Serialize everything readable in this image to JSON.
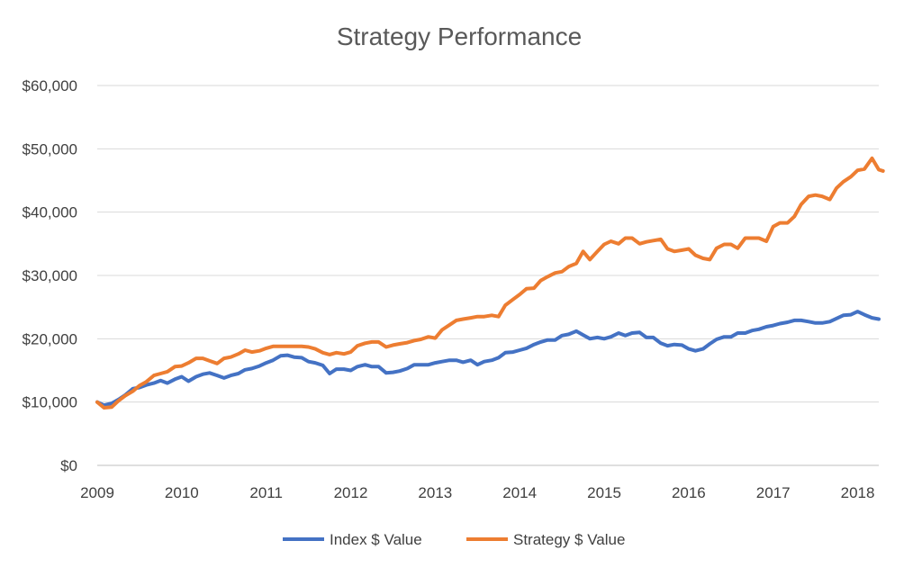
{
  "chart_data": {
    "type": "line",
    "title": "Strategy Performance",
    "xlabel": "",
    "ylabel": "",
    "xlim": [
      2009.0,
      2018.25
    ],
    "ylim": [
      0,
      60000
    ],
    "x_ticks": [
      2009,
      2010,
      2011,
      2012,
      2013,
      2014,
      2015,
      2016,
      2017,
      2018
    ],
    "x_tick_labels": [
      "2009",
      "2010",
      "2011",
      "2012",
      "2013",
      "2014",
      "2015",
      "2016",
      "2017",
      "2018"
    ],
    "y_ticks": [
      0,
      10000,
      20000,
      30000,
      40000,
      50000,
      60000
    ],
    "y_tick_labels": [
      "$0",
      "$10,000",
      "$20,000",
      "$30,000",
      "$40,000",
      "$50,000",
      "$60,000"
    ],
    "grid": true,
    "legend": "bottom",
    "series": [
      {
        "name": "Index $ Value",
        "color": "#4472c4",
        "points": [
          [
            2009.0,
            10000
          ],
          [
            2009.08,
            9500
          ],
          [
            2009.17,
            9800
          ],
          [
            2009.25,
            10400
          ],
          [
            2009.33,
            11100
          ],
          [
            2009.42,
            12100
          ],
          [
            2009.5,
            12300
          ],
          [
            2009.58,
            12700
          ],
          [
            2009.67,
            13000
          ],
          [
            2009.75,
            13400
          ],
          [
            2009.83,
            13000
          ],
          [
            2009.92,
            13600
          ],
          [
            2010.0,
            14000
          ],
          [
            2010.08,
            13300
          ],
          [
            2010.17,
            14000
          ],
          [
            2010.25,
            14400
          ],
          [
            2010.33,
            14600
          ],
          [
            2010.42,
            14200
          ],
          [
            2010.5,
            13800
          ],
          [
            2010.58,
            14200
          ],
          [
            2010.67,
            14500
          ],
          [
            2010.75,
            15100
          ],
          [
            2010.83,
            15300
          ],
          [
            2010.92,
            15700
          ],
          [
            2011.0,
            16200
          ],
          [
            2011.08,
            16600
          ],
          [
            2011.17,
            17300
          ],
          [
            2011.25,
            17400
          ],
          [
            2011.33,
            17100
          ],
          [
            2011.42,
            17000
          ],
          [
            2011.5,
            16400
          ],
          [
            2011.58,
            16200
          ],
          [
            2011.67,
            15800
          ],
          [
            2011.75,
            14500
          ],
          [
            2011.83,
            15200
          ],
          [
            2011.92,
            15200
          ],
          [
            2012.0,
            15000
          ],
          [
            2012.08,
            15600
          ],
          [
            2012.17,
            15900
          ],
          [
            2012.25,
            15600
          ],
          [
            2012.33,
            15600
          ],
          [
            2012.42,
            14600
          ],
          [
            2012.5,
            14700
          ],
          [
            2012.58,
            14900
          ],
          [
            2012.67,
            15300
          ],
          [
            2012.75,
            15900
          ],
          [
            2012.83,
            15900
          ],
          [
            2012.92,
            15900
          ],
          [
            2013.0,
            16200
          ],
          [
            2013.08,
            16400
          ],
          [
            2013.17,
            16600
          ],
          [
            2013.25,
            16600
          ],
          [
            2013.33,
            16300
          ],
          [
            2013.42,
            16600
          ],
          [
            2013.5,
            15900
          ],
          [
            2013.58,
            16400
          ],
          [
            2013.67,
            16600
          ],
          [
            2013.75,
            17000
          ],
          [
            2013.83,
            17800
          ],
          [
            2013.92,
            17900
          ],
          [
            2014.0,
            18200
          ],
          [
            2014.08,
            18500
          ],
          [
            2014.17,
            19100
          ],
          [
            2014.25,
            19500
          ],
          [
            2014.33,
            19800
          ],
          [
            2014.42,
            19800
          ],
          [
            2014.5,
            20500
          ],
          [
            2014.58,
            20700
          ],
          [
            2014.67,
            21200
          ],
          [
            2014.75,
            20600
          ],
          [
            2014.83,
            20000
          ],
          [
            2014.92,
            20200
          ],
          [
            2015.0,
            20000
          ],
          [
            2015.08,
            20300
          ],
          [
            2015.17,
            20900
          ],
          [
            2015.25,
            20500
          ],
          [
            2015.33,
            20900
          ],
          [
            2015.42,
            21000
          ],
          [
            2015.5,
            20200
          ],
          [
            2015.58,
            20200
          ],
          [
            2015.67,
            19300
          ],
          [
            2015.75,
            18900
          ],
          [
            2015.83,
            19100
          ],
          [
            2015.92,
            19000
          ],
          [
            2016.0,
            18400
          ],
          [
            2016.08,
            18100
          ],
          [
            2016.17,
            18400
          ],
          [
            2016.25,
            19200
          ],
          [
            2016.33,
            19900
          ],
          [
            2016.42,
            20300
          ],
          [
            2016.5,
            20300
          ],
          [
            2016.58,
            20900
          ],
          [
            2016.67,
            20900
          ],
          [
            2016.75,
            21300
          ],
          [
            2016.83,
            21500
          ],
          [
            2016.92,
            21900
          ],
          [
            2017.0,
            22100
          ],
          [
            2017.08,
            22400
          ],
          [
            2017.17,
            22600
          ],
          [
            2017.25,
            22900
          ],
          [
            2017.33,
            22900
          ],
          [
            2017.42,
            22700
          ],
          [
            2017.5,
            22500
          ],
          [
            2017.58,
            22500
          ],
          [
            2017.67,
            22700
          ],
          [
            2017.75,
            23200
          ],
          [
            2017.83,
            23700
          ],
          [
            2017.92,
            23800
          ],
          [
            2018.0,
            24300
          ],
          [
            2018.08,
            23800
          ],
          [
            2018.17,
            23300
          ],
          [
            2018.25,
            23100
          ]
        ]
      },
      {
        "name": "Strategy $ Value",
        "color": "#ed7d31",
        "points": [
          [
            2009.0,
            10000
          ],
          [
            2009.08,
            9100
          ],
          [
            2009.17,
            9200
          ],
          [
            2009.25,
            10200
          ],
          [
            2009.33,
            11000
          ],
          [
            2009.42,
            11700
          ],
          [
            2009.5,
            12600
          ],
          [
            2009.58,
            13200
          ],
          [
            2009.67,
            14200
          ],
          [
            2009.75,
            14500
          ],
          [
            2009.83,
            14800
          ],
          [
            2009.92,
            15600
          ],
          [
            2010.0,
            15700
          ],
          [
            2010.08,
            16200
          ],
          [
            2010.17,
            16900
          ],
          [
            2010.25,
            16900
          ],
          [
            2010.33,
            16500
          ],
          [
            2010.42,
            16100
          ],
          [
            2010.5,
            16900
          ],
          [
            2010.58,
            17100
          ],
          [
            2010.67,
            17600
          ],
          [
            2010.75,
            18200
          ],
          [
            2010.83,
            17900
          ],
          [
            2010.92,
            18100
          ],
          [
            2011.0,
            18500
          ],
          [
            2011.08,
            18800
          ],
          [
            2011.17,
            18800
          ],
          [
            2011.25,
            18800
          ],
          [
            2011.33,
            18800
          ],
          [
            2011.42,
            18800
          ],
          [
            2011.5,
            18700
          ],
          [
            2011.58,
            18400
          ],
          [
            2011.67,
            17800
          ],
          [
            2011.75,
            17500
          ],
          [
            2011.83,
            17800
          ],
          [
            2011.92,
            17600
          ],
          [
            2012.0,
            17900
          ],
          [
            2012.08,
            18900
          ],
          [
            2012.17,
            19300
          ],
          [
            2012.25,
            19500
          ],
          [
            2012.33,
            19500
          ],
          [
            2012.42,
            18700
          ],
          [
            2012.5,
            19000
          ],
          [
            2012.58,
            19200
          ],
          [
            2012.67,
            19400
          ],
          [
            2012.75,
            19700
          ],
          [
            2012.83,
            19900
          ],
          [
            2012.92,
            20300
          ],
          [
            2013.0,
            20100
          ],
          [
            2013.08,
            21400
          ],
          [
            2013.17,
            22200
          ],
          [
            2013.25,
            22900
          ],
          [
            2013.33,
            23100
          ],
          [
            2013.42,
            23300
          ],
          [
            2013.5,
            23500
          ],
          [
            2013.58,
            23500
          ],
          [
            2013.67,
            23700
          ],
          [
            2013.75,
            23500
          ],
          [
            2013.83,
            25300
          ],
          [
            2013.92,
            26200
          ],
          [
            2014.0,
            27000
          ],
          [
            2014.08,
            27900
          ],
          [
            2014.17,
            28000
          ],
          [
            2014.25,
            29200
          ],
          [
            2014.33,
            29800
          ],
          [
            2014.42,
            30400
          ],
          [
            2014.5,
            30600
          ],
          [
            2014.58,
            31400
          ],
          [
            2014.67,
            31900
          ],
          [
            2014.75,
            33800
          ],
          [
            2014.83,
            32500
          ],
          [
            2014.92,
            33800
          ],
          [
            2015.0,
            34900
          ],
          [
            2015.08,
            35400
          ],
          [
            2015.17,
            35000
          ],
          [
            2015.25,
            35900
          ],
          [
            2015.33,
            35900
          ],
          [
            2015.42,
            35000
          ],
          [
            2015.5,
            35300
          ],
          [
            2015.58,
            35500
          ],
          [
            2015.67,
            35700
          ],
          [
            2015.75,
            34200
          ],
          [
            2015.83,
            33800
          ],
          [
            2015.92,
            34000
          ],
          [
            2016.0,
            34200
          ],
          [
            2016.08,
            33200
          ],
          [
            2016.17,
            32700
          ],
          [
            2016.25,
            32500
          ],
          [
            2016.33,
            34300
          ],
          [
            2016.42,
            34900
          ],
          [
            2016.5,
            34900
          ],
          [
            2016.58,
            34300
          ],
          [
            2016.67,
            35900
          ],
          [
            2016.75,
            35900
          ],
          [
            2016.83,
            35900
          ],
          [
            2016.92,
            35400
          ],
          [
            2017.0,
            37700
          ],
          [
            2017.08,
            38300
          ],
          [
            2017.17,
            38300
          ],
          [
            2017.25,
            39300
          ],
          [
            2017.33,
            41200
          ],
          [
            2017.42,
            42500
          ],
          [
            2017.5,
            42700
          ],
          [
            2017.58,
            42500
          ],
          [
            2017.67,
            42000
          ],
          [
            2017.75,
            43800
          ],
          [
            2017.83,
            44800
          ],
          [
            2017.92,
            45600
          ],
          [
            2018.0,
            46600
          ],
          [
            2018.08,
            46800
          ],
          [
            2018.17,
            48500
          ],
          [
            2018.25,
            46700
          ],
          [
            2018.3,
            46500
          ]
        ]
      }
    ]
  }
}
